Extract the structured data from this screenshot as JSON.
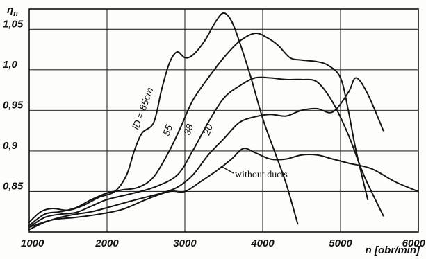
{
  "chart_data": {
    "type": "line",
    "xlabel": "n [obr/min]",
    "ylabel": "ηn",
    "xlim": [
      1000,
      6000
    ],
    "ylim": [
      0.8,
      1.075
    ],
    "x_ticks": [
      "1000",
      "2000",
      "3000",
      "4000",
      "5000",
      "6000"
    ],
    "y_ticks": [
      {
        "v": 1.05,
        "label": "1,05"
      },
      {
        "v": 1.0,
        "label": "1,0"
      },
      {
        "v": 0.95,
        "label": "0,95"
      },
      {
        "v": 0.9,
        "label": "0,9"
      },
      {
        "v": 0.85,
        "label": "0,85"
      }
    ],
    "grid": true,
    "series": [
      {
        "name": "lD=85cm",
        "points": [
          [
            1000,
            0.812
          ],
          [
            1150,
            0.825
          ],
          [
            1300,
            0.829
          ],
          [
            1500,
            0.827
          ],
          [
            1700,
            0.833
          ],
          [
            1900,
            0.843
          ],
          [
            2100,
            0.85
          ],
          [
            2250,
            0.87
          ],
          [
            2350,
            0.9
          ],
          [
            2450,
            0.922
          ],
          [
            2600,
            0.935
          ],
          [
            2700,
            0.975
          ],
          [
            2800,
            1.008
          ],
          [
            2900,
            1.022
          ],
          [
            3000,
            1.015
          ],
          [
            3100,
            1.018
          ],
          [
            3250,
            1.035
          ],
          [
            3400,
            1.06
          ],
          [
            3500,
            1.07
          ],
          [
            3600,
            1.06
          ],
          [
            3700,
            1.035
          ],
          [
            3850,
            0.99
          ],
          [
            4000,
            0.94
          ],
          [
            4150,
            0.9
          ],
          [
            4300,
            0.86
          ],
          [
            4450,
            0.81
          ]
        ]
      },
      {
        "name": "55",
        "points": [
          [
            1000,
            0.808
          ],
          [
            1200,
            0.822
          ],
          [
            1400,
            0.825
          ],
          [
            1600,
            0.83
          ],
          [
            1800,
            0.84
          ],
          [
            2000,
            0.848
          ],
          [
            2200,
            0.852
          ],
          [
            2400,
            0.855
          ],
          [
            2600,
            0.868
          ],
          [
            2800,
            0.9
          ],
          [
            2950,
            0.93
          ],
          [
            3100,
            0.962
          ],
          [
            3300,
            0.99
          ],
          [
            3500,
            1.015
          ],
          [
            3700,
            1.035
          ],
          [
            3900,
            1.045
          ],
          [
            4050,
            1.04
          ],
          [
            4200,
            1.03
          ],
          [
            4350,
            1.015
          ],
          [
            4500,
            1.012
          ],
          [
            4700,
            1.01
          ],
          [
            4850,
            1.005
          ],
          [
            5000,
            0.99
          ],
          [
            5100,
            0.95
          ],
          [
            5200,
            0.9
          ],
          [
            5350,
            0.84
          ]
        ]
      },
      {
        "name": "38",
        "points": [
          [
            1000,
            0.806
          ],
          [
            1200,
            0.818
          ],
          [
            1400,
            0.822
          ],
          [
            1600,
            0.824
          ],
          [
            1800,
            0.832
          ],
          [
            2000,
            0.84
          ],
          [
            2300,
            0.847
          ],
          [
            2600,
            0.855
          ],
          [
            2900,
            0.87
          ],
          [
            3100,
            0.9
          ],
          [
            3300,
            0.935
          ],
          [
            3500,
            0.965
          ],
          [
            3700,
            0.98
          ],
          [
            3900,
            0.99
          ],
          [
            4100,
            0.99
          ],
          [
            4300,
            0.988
          ],
          [
            4500,
            0.988
          ],
          [
            4700,
            0.985
          ],
          [
            4900,
            0.96
          ],
          [
            5100,
            0.92
          ],
          [
            5300,
            0.87
          ],
          [
            5550,
            0.82
          ]
        ]
      },
      {
        "name": "20",
        "points": [
          [
            1000,
            0.803
          ],
          [
            1200,
            0.812
          ],
          [
            1400,
            0.818
          ],
          [
            1600,
            0.822
          ],
          [
            1800,
            0.825
          ],
          [
            2000,
            0.83
          ],
          [
            2300,
            0.838
          ],
          [
            2500,
            0.843
          ],
          [
            2700,
            0.848
          ],
          [
            2900,
            0.855
          ],
          [
            3100,
            0.87
          ],
          [
            3300,
            0.895
          ],
          [
            3500,
            0.915
          ],
          [
            3700,
            0.935
          ],
          [
            3900,
            0.942
          ],
          [
            4100,
            0.945
          ],
          [
            4300,
            0.943
          ],
          [
            4500,
            0.95
          ],
          [
            4700,
            0.952
          ],
          [
            4900,
            0.948
          ],
          [
            5100,
            0.972
          ],
          [
            5200,
            0.99
          ],
          [
            5350,
            0.97
          ],
          [
            5550,
            0.925
          ]
        ]
      },
      {
        "name": "without ducts",
        "points": [
          [
            1000,
            0.806
          ],
          [
            1300,
            0.815
          ],
          [
            1600,
            0.818
          ],
          [
            1900,
            0.822
          ],
          [
            2200,
            0.828
          ],
          [
            2500,
            0.84
          ],
          [
            2800,
            0.85
          ],
          [
            3000,
            0.85
          ],
          [
            3200,
            0.862
          ],
          [
            3400,
            0.875
          ],
          [
            3600,
            0.89
          ],
          [
            3750,
            0.903
          ],
          [
            3900,
            0.898
          ],
          [
            4100,
            0.89
          ],
          [
            4300,
            0.89
          ],
          [
            4500,
            0.895
          ],
          [
            4700,
            0.895
          ],
          [
            4900,
            0.89
          ],
          [
            5100,
            0.885
          ],
          [
            5400,
            0.878
          ],
          [
            5700,
            0.862
          ],
          [
            6000,
            0.85
          ]
        ]
      }
    ],
    "labels": {
      "l85": "lD = 85cm",
      "l55": "55",
      "l38": "38",
      "l20": "20",
      "without": "without ducts"
    }
  }
}
